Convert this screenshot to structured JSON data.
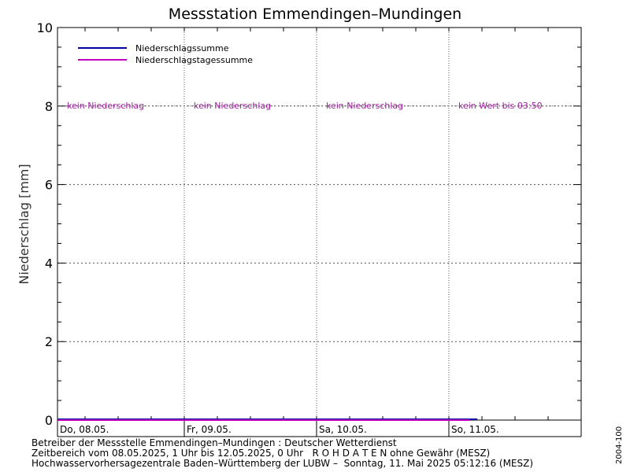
{
  "chart_data": {
    "type": "line",
    "title": "Messstation Emmendingen–Mundingen",
    "ylabel": "Niederschlag [mm]",
    "xlabel": "",
    "ylim": [
      0,
      10
    ],
    "yticks": [
      0,
      2,
      4,
      6,
      8,
      10
    ],
    "grid": true,
    "legend_position": "top-left",
    "days": [
      {
        "label": "Do, 08.05.",
        "annotation": "kein Niederschlag"
      },
      {
        "label": "Fr, 09.05.",
        "annotation": "kein Niederschlag"
      },
      {
        "label": "Sa, 10.05.",
        "annotation": "kein Niederschlag"
      },
      {
        "label": "So, 11.05.",
        "annotation": "kein Wert bis 03:50"
      }
    ],
    "series": [
      {
        "name": "Niederschlagssumme",
        "color": "#0000a0",
        "x": [
          "08.05. 01:00",
          "11.05. 05:10"
        ],
        "y": [
          0,
          0
        ]
      },
      {
        "name": "Niederschlagstagessumme",
        "color": "#c000c0",
        "x": [
          "08.05. 01:00",
          "11.05. 03:50"
        ],
        "y": [
          0,
          0
        ]
      }
    ],
    "annotation_color": "#a020a0"
  },
  "footer": {
    "line1": "Betreiber der Messstelle Emmendingen–Mundingen : Deutscher Wetterdienst",
    "line2": "Zeitbereich vom 08.05.2025, 1 Uhr bis 12.05.2025, 0 Uhr   R O H D A T E N ohne Gewähr (MESZ)",
    "line3": "Hochwasservorhersagezentrale Baden–Württemberg der LUBW –  Sonntag, 11. Mai 2025 05:12:16 (MESZ)"
  },
  "side_id": "2004-100"
}
